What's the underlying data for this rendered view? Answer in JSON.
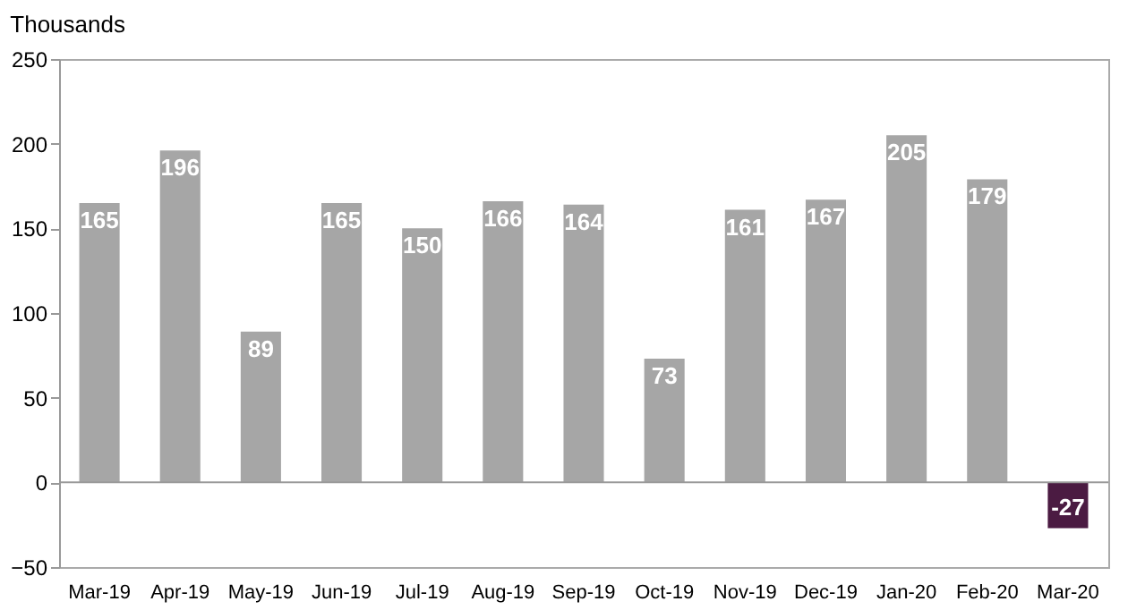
{
  "chart_data": {
    "type": "bar",
    "ylabel": "Thousands",
    "categories": [
      "Mar-19",
      "Apr-19",
      "May-19",
      "Jun-19",
      "Jul-19",
      "Aug-19",
      "Sep-19",
      "Oct-19",
      "Nov-19",
      "Dec-19",
      "Jan-20",
      "Feb-20",
      "Mar-20"
    ],
    "values": [
      165,
      196,
      89,
      165,
      150,
      166,
      164,
      73,
      161,
      167,
      205,
      179,
      -27
    ],
    "colors": [
      "#a6a6a6",
      "#a6a6a6",
      "#a6a6a6",
      "#a6a6a6",
      "#a6a6a6",
      "#a6a6a6",
      "#a6a6a6",
      "#a6a6a6",
      "#a6a6a6",
      "#a6a6a6",
      "#a6a6a6",
      "#a6a6a6",
      "#4b1b42"
    ],
    "ylim": [
      -50,
      250
    ],
    "yticks": [
      -50,
      0,
      50,
      100,
      150,
      200,
      250
    ],
    "grid": false,
    "ref_lines": [
      {
        "axis": "y",
        "value": 0,
        "color": "#999999"
      }
    ],
    "data_labels": true
  }
}
